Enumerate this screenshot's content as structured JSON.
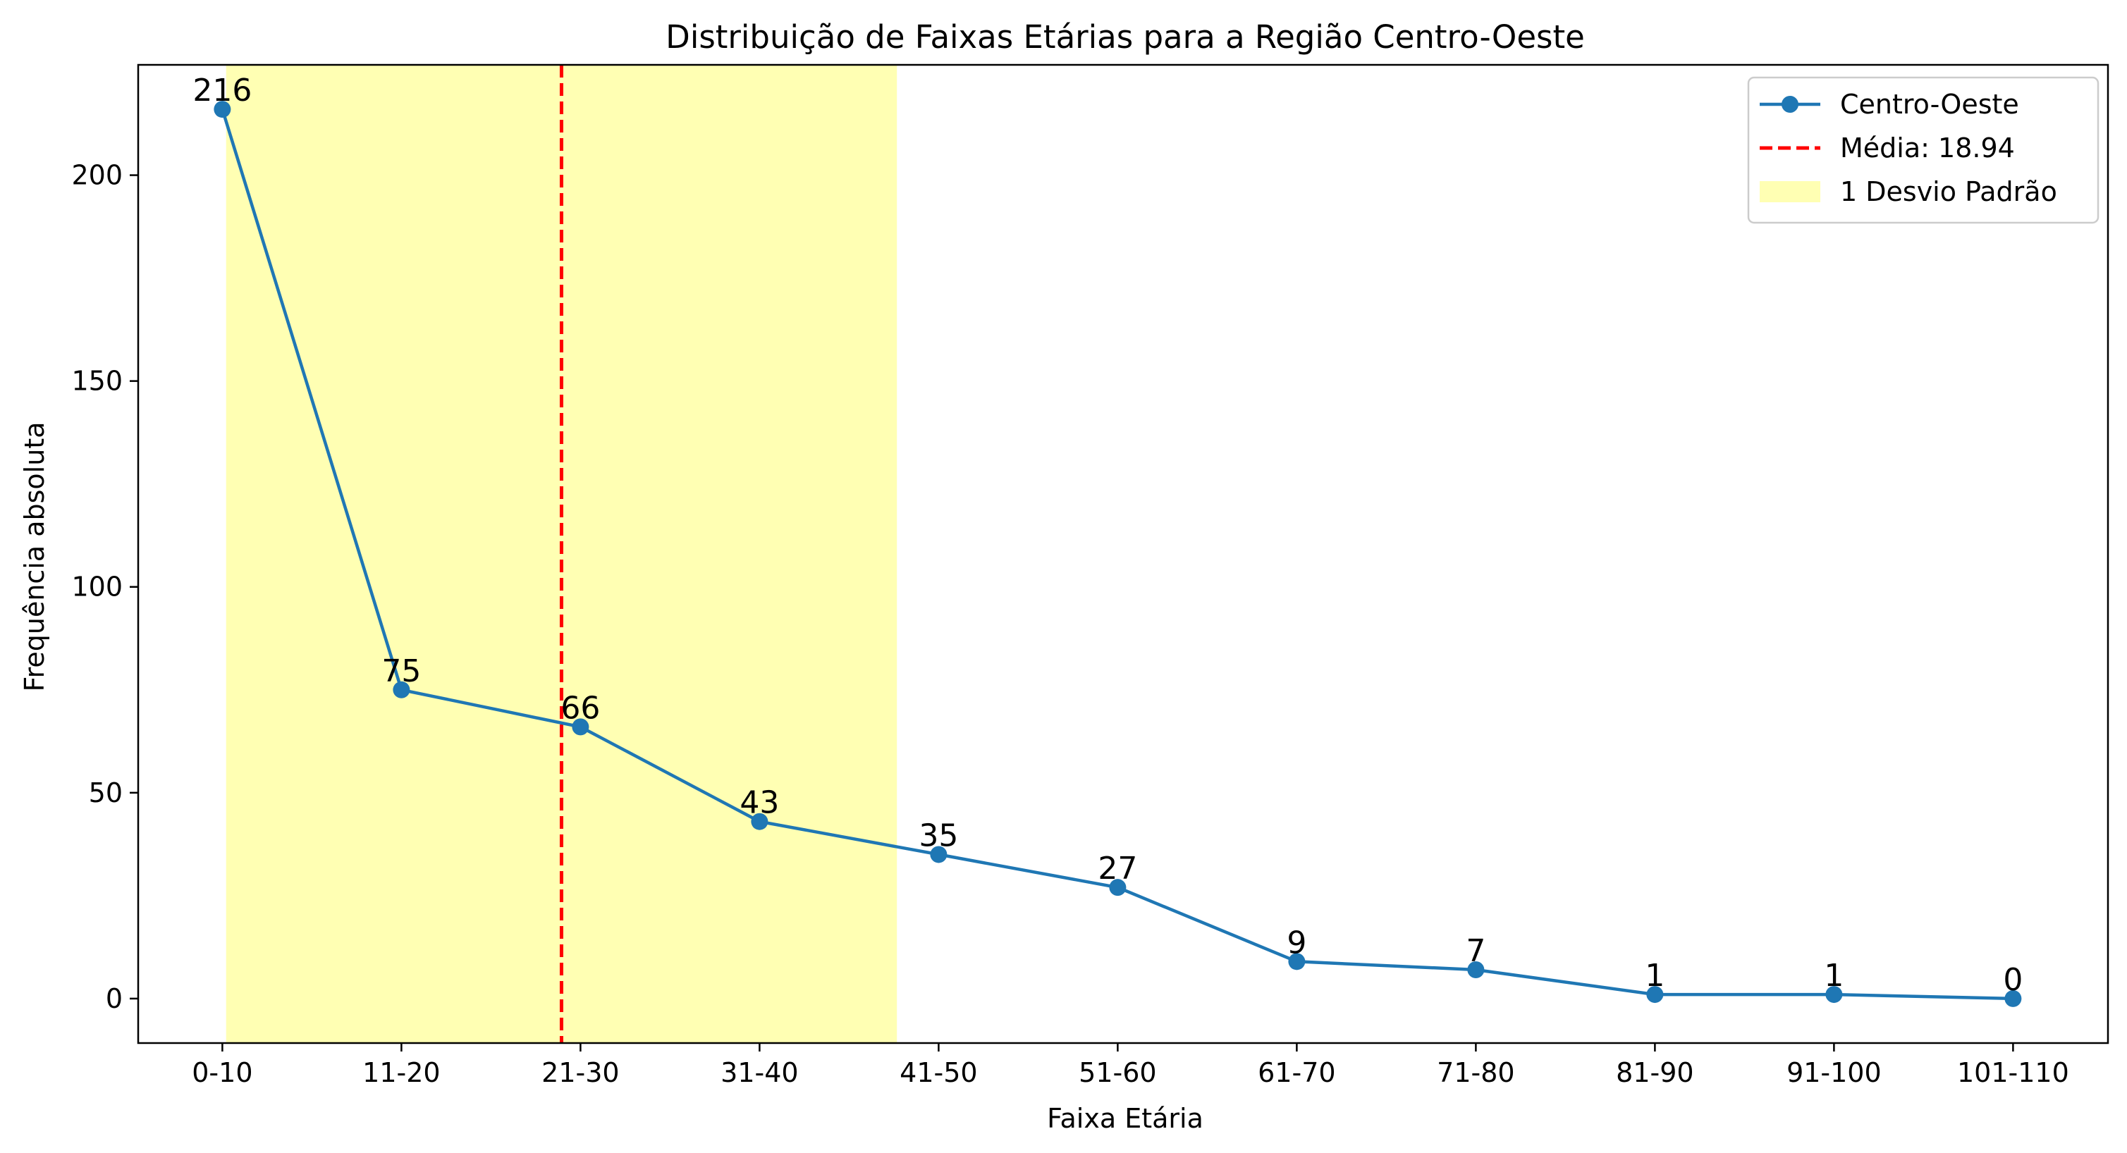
{
  "chart_data": {
    "type": "line",
    "title": "Distribuição de Faixas Etárias para a Região Centro-Oeste",
    "xlabel": "Faixa Etária",
    "ylabel": "Frequência absoluta",
    "categories": [
      "0-10",
      "11-20",
      "21-30",
      "31-40",
      "41-50",
      "51-60",
      "61-70",
      "71-80",
      "81-90",
      "91-100",
      "101-110"
    ],
    "series": [
      {
        "name": "Centro-Oeste",
        "values": [
          216,
          75,
          66,
          43,
          35,
          27,
          9,
          7,
          1,
          1,
          0
        ],
        "color": "#1f77b4",
        "marker": "circle"
      }
    ],
    "mean_line": {
      "label": "Média: 18.94",
      "x": 18.94,
      "color": "#ff0000",
      "style": "dashed"
    },
    "std_band": {
      "label": "1 Desvio Padrão",
      "x_range": [
        0.21,
        37.67
      ],
      "color": "#ffff99"
    },
    "x_numeric_domain": [
      -4.7,
      105.3
    ],
    "ylim": [
      -10.8,
      226.8
    ],
    "yticks": [
      0,
      50,
      100,
      150,
      200
    ],
    "grid": false,
    "legend_position": "top-right"
  }
}
